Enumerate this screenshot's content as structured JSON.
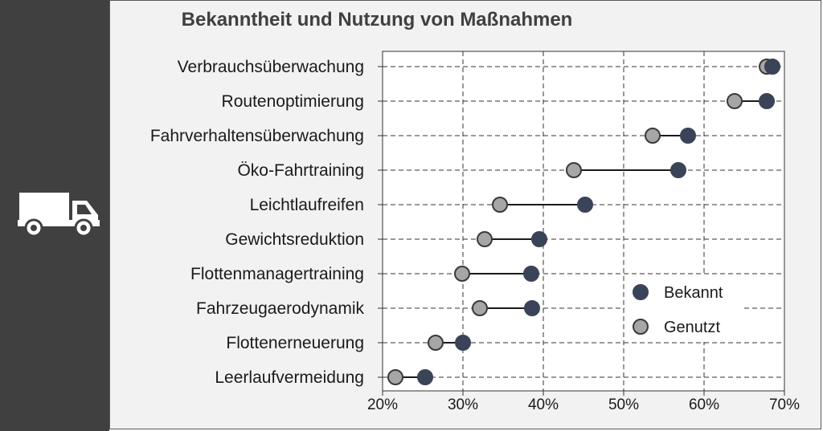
{
  "sidebar": {
    "icon": "truck-icon"
  },
  "colors": {
    "known": "#3b4358",
    "used": "#a6a6a6",
    "sidebar": "#404040",
    "panel": "#f2f2f2"
  },
  "chart_data": {
    "type": "dumbbell",
    "title": "Bekanntheit und Nutzung von Maßnahmen",
    "xlabel": "",
    "ylabel": "",
    "xlim": [
      20,
      70
    ],
    "x_ticks": [
      "20%",
      "30%",
      "40%",
      "50%",
      "60%",
      "70%"
    ],
    "grid": true,
    "legend_position": "lower-right",
    "categories": [
      "Verbrauchsüberwachung",
      "Routenoptimierung",
      "Fahrverhaltensüberwachung",
      "Öko-Fahrtraining",
      "Leichtlaufreifen",
      "Gewichtsreduktion",
      "Flottenmanagertraining",
      "Fahrzeugaerodynamik",
      "Flottenerneuerung",
      "Leerlaufvermeidung"
    ],
    "series": [
      {
        "name": "Bekannt",
        "values": [
          68.5,
          67.8,
          58.0,
          56.8,
          45.2,
          39.5,
          38.5,
          38.6,
          30.0,
          25.3
        ]
      },
      {
        "name": "Genutzt",
        "values": [
          67.8,
          63.8,
          53.6,
          43.8,
          34.6,
          32.7,
          29.9,
          32.1,
          26.6,
          21.6
        ]
      }
    ]
  }
}
